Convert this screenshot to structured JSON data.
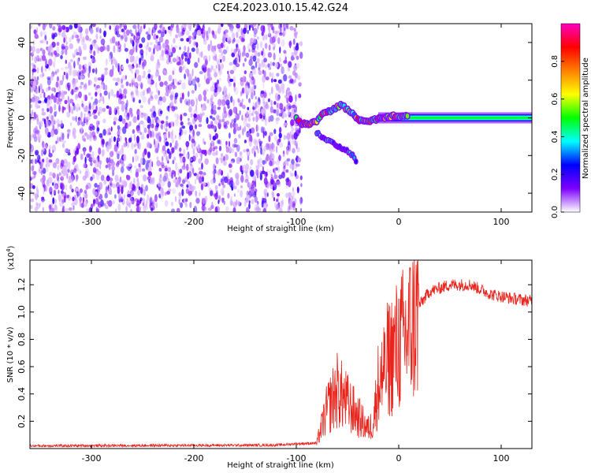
{
  "title": "C2E4.2023.010.15.42.G24",
  "chart_data": [
    {
      "type": "heatmap",
      "xlabel": "Height of straight line (km)",
      "ylabel": "Frequency (Hz)",
      "xlim": [
        -360,
        130
      ],
      "ylim": [
        -50,
        50
      ],
      "xticks": [
        -300,
        -200,
        -100,
        0,
        100
      ],
      "yticks": [
        -40,
        -20,
        0,
        20,
        40
      ],
      "noise_region_x": [
        -360,
        -95
      ],
      "signal_trace": [
        {
          "x": -100,
          "y": 0
        },
        {
          "x": -95,
          "y": -3
        },
        {
          "x": -88,
          "y": -3
        },
        {
          "x": -80,
          "y": -2
        },
        {
          "x": -75,
          "y": 2
        },
        {
          "x": -70,
          "y": 3
        },
        {
          "x": -65,
          "y": 4
        },
        {
          "x": -60,
          "y": 6
        },
        {
          "x": -55,
          "y": 7
        },
        {
          "x": -50,
          "y": 4
        },
        {
          "x": -45,
          "y": 2
        },
        {
          "x": -40,
          "y": -1
        },
        {
          "x": -35,
          "y": -2
        },
        {
          "x": -25,
          "y": -1
        },
        {
          "x": -15,
          "y": 0
        },
        {
          "x": -5,
          "y": 1
        },
        {
          "x": 10,
          "y": 1
        },
        {
          "x": 50,
          "y": 0.5
        },
        {
          "x": 100,
          "y": 0
        },
        {
          "x": 130,
          "y": 0
        }
      ],
      "side_branch": [
        {
          "x": -80,
          "y": -8
        },
        {
          "x": -72,
          "y": -11
        },
        {
          "x": -62,
          "y": -14
        },
        {
          "x": -52,
          "y": -17
        },
        {
          "x": -45,
          "y": -20
        },
        {
          "x": -40,
          "y": -24
        }
      ],
      "colorbar": {
        "label": "Normalized spectral amplitude",
        "range": [
          0,
          1
        ],
        "ticks": [
          0.0,
          0.2,
          0.4,
          0.6,
          0.8
        ],
        "tick_labels": [
          "0.0",
          "0.2",
          "0.4",
          "0.6",
          "0.8"
        ],
        "colors": [
          "#ffffff",
          "#7d00ff",
          "#0000ff",
          "#00ffff",
          "#00ff00",
          "#ffff00",
          "#ff7f00",
          "#ff0000",
          "#ff00c0"
        ]
      }
    },
    {
      "type": "line",
      "xlabel": "Height of straight line (km)",
      "ylabel": "SNR (10 * v/v)",
      "multiplier_label": "(x10",
      "multiplier_exponent": "4",
      "xlim": [
        -360,
        130
      ],
      "ylim": [
        0,
        1.38
      ],
      "xticks": [
        -300,
        -200,
        -100,
        0,
        100
      ],
      "yticks": [
        0.2,
        0.4,
        0.6,
        0.8,
        1.0,
        1.2
      ],
      "ytick_labels": [
        "0.2",
        "0.4",
        "0.6",
        "0.8",
        "1.0",
        "1.2"
      ],
      "line_color": "#e8241c",
      "envelope": [
        {
          "x": -360,
          "y": 0.02
        },
        {
          "x": -120,
          "y": 0.025
        },
        {
          "x": -100,
          "y": 0.035
        },
        {
          "x": -80,
          "y": 0.04
        },
        {
          "x": -78,
          "y": 0.1
        },
        {
          "x": -70,
          "y": 0.3
        },
        {
          "x": -60,
          "y": 0.45
        },
        {
          "x": -50,
          "y": 0.35
        },
        {
          "x": -40,
          "y": 0.25
        },
        {
          "x": -30,
          "y": 0.15
        },
        {
          "x": -25,
          "y": 0.2
        },
        {
          "x": -20,
          "y": 0.5
        },
        {
          "x": -10,
          "y": 0.7
        },
        {
          "x": 0,
          "y": 0.8
        },
        {
          "x": 10,
          "y": 0.9
        },
        {
          "x": 20,
          "y": 1.05
        },
        {
          "x": 30,
          "y": 1.15
        },
        {
          "x": 50,
          "y": 1.2
        },
        {
          "x": 70,
          "y": 1.2
        },
        {
          "x": 90,
          "y": 1.13
        },
        {
          "x": 110,
          "y": 1.1
        },
        {
          "x": 130,
          "y": 1.08
        }
      ]
    }
  ]
}
